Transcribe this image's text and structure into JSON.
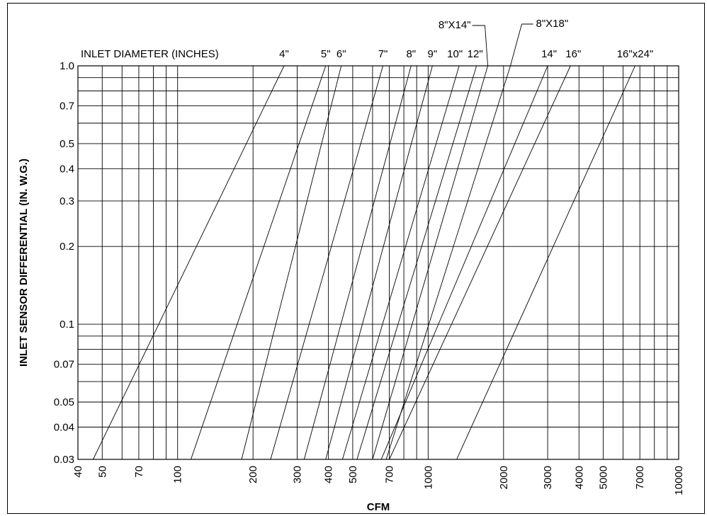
{
  "chart_data": {
    "type": "line",
    "x_scale": "log",
    "y_scale": "log",
    "xlabel": "CFM",
    "ylabel": "INLET SENSOR DIFFERENTIAL (IN. W.G.)",
    "series_header": "INLET DIAMETER (INCHES)",
    "xlim": [
      40,
      10000
    ],
    "ylim": [
      0.03,
      1.0
    ],
    "grid": true,
    "x_ticks": [
      40,
      50,
      70,
      100,
      200,
      300,
      400,
      500,
      700,
      1000,
      2000,
      3000,
      4000,
      5000,
      7000,
      10000
    ],
    "y_ticks": [
      "1.0",
      "0.7",
      "0.5",
      "0.4",
      "0.3",
      "0.2",
      "0.1",
      "0.07",
      "0.05",
      "0.04",
      "0.03"
    ],
    "x_gridlines": [
      40,
      50,
      60,
      70,
      80,
      90,
      100,
      200,
      300,
      400,
      500,
      600,
      700,
      800,
      900,
      1000,
      2000,
      3000,
      4000,
      5000,
      6000,
      7000,
      8000,
      9000,
      10000
    ],
    "y_gridlines": [
      0.03,
      0.04,
      0.05,
      0.06,
      0.07,
      0.08,
      0.09,
      0.1,
      0.2,
      0.3,
      0.4,
      0.5,
      0.6,
      0.7,
      0.8,
      0.9,
      1.0
    ],
    "series": [
      {
        "name": "4\"",
        "x": [
          46,
          266
        ],
        "y": [
          0.03,
          1.0
        ]
      },
      {
        "name": "5\"",
        "x": [
          113,
          390
        ],
        "y": [
          0.03,
          1.0
        ]
      },
      {
        "name": "6\"",
        "x": [
          180,
          450
        ],
        "y": [
          0.03,
          1.0
        ]
      },
      {
        "name": "7\"",
        "x": [
          235,
          660
        ],
        "y": [
          0.03,
          1.0
        ]
      },
      {
        "name": "8\"",
        "x": [
          320,
          855
        ],
        "y": [
          0.03,
          1.0
        ]
      },
      {
        "name": "9\"",
        "x": [
          390,
          1040
        ],
        "y": [
          0.03,
          1.0
        ]
      },
      {
        "name": "10\"",
        "x": [
          455,
          1330
        ],
        "y": [
          0.03,
          1.0
        ]
      },
      {
        "name": "12\"",
        "x": [
          520,
          1560
        ],
        "y": [
          0.03,
          1.0
        ]
      },
      {
        "name": "8\"X14\"",
        "x": [
          600,
          1730
        ],
        "y": [
          0.03,
          1.0
        ]
      },
      {
        "name": "8\"X18\"",
        "x": [
          680,
          2130
        ],
        "y": [
          0.03,
          1.0
        ]
      },
      {
        "name": "14\"",
        "x": [
          650,
          3000
        ],
        "y": [
          0.03,
          1.0
        ]
      },
      {
        "name": "16\"",
        "x": [
          700,
          3700
        ],
        "y": [
          0.03,
          1.0
        ]
      },
      {
        "name": "16\"x24\"",
        "x": [
          1300,
          6700
        ],
        "y": [
          0.03,
          1.0
        ]
      }
    ]
  }
}
